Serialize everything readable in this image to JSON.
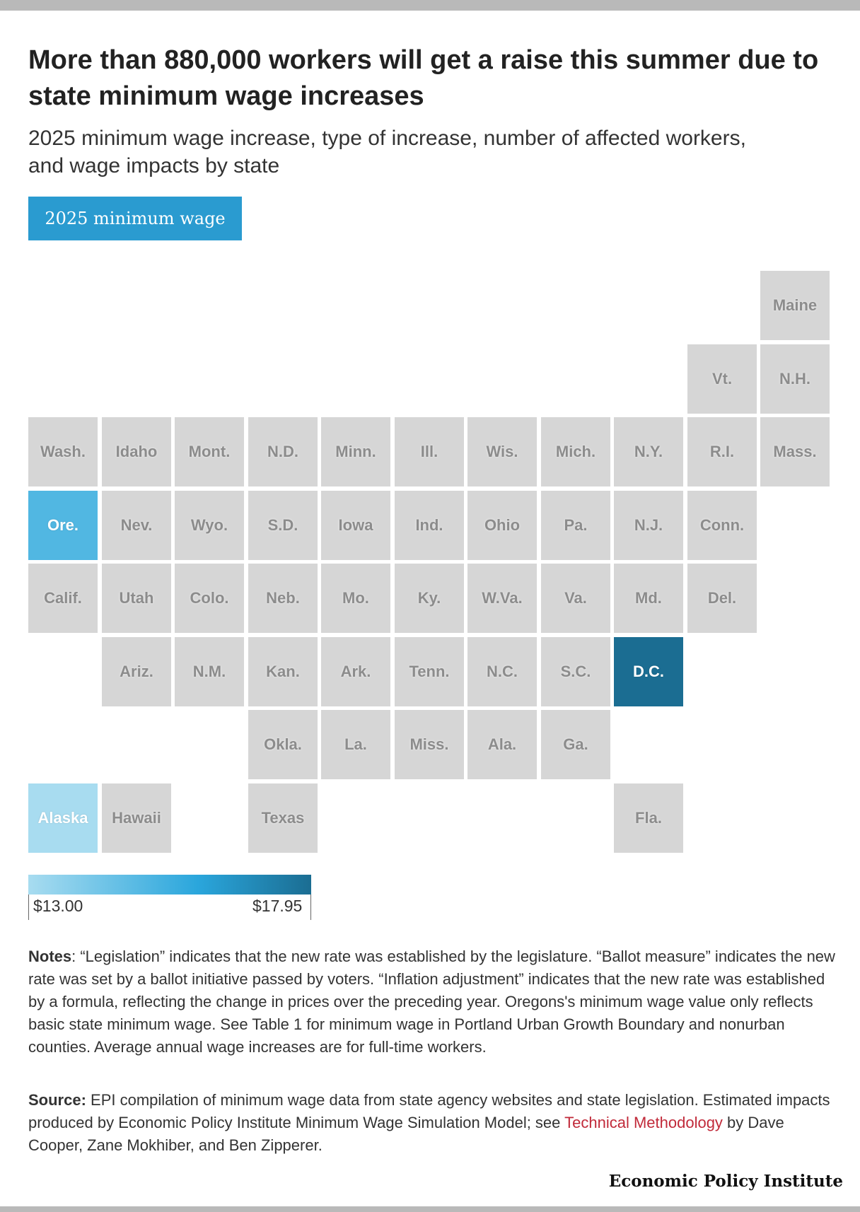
{
  "title": "More than 880,000 workers will get a raise this summer due to state minimum wage increases",
  "subtitle": "2025 minimum wage increase, type of increase, number of affected workers, and wage impacts by state",
  "tab": {
    "label": "2025 minimum wage"
  },
  "map": {
    "colors": {
      "empty": "#d6d6d6",
      "low": "#a8dcf0",
      "mid": "#2aa6dc",
      "high": "#1b6d92"
    },
    "legend": {
      "min_label": "$13.00",
      "max_label": "$17.95",
      "min_value": 13.0,
      "max_value": 17.95
    },
    "states": [
      {
        "label": "Maine",
        "row": 0,
        "col": 10
      },
      {
        "label": "Vt.",
        "row": 1,
        "col": 9
      },
      {
        "label": "N.H.",
        "row": 1,
        "col": 10
      },
      {
        "label": "Wash.",
        "row": 2,
        "col": 0
      },
      {
        "label": "Idaho",
        "row": 2,
        "col": 1
      },
      {
        "label": "Mont.",
        "row": 2,
        "col": 2
      },
      {
        "label": "N.D.",
        "row": 2,
        "col": 3
      },
      {
        "label": "Minn.",
        "row": 2,
        "col": 4
      },
      {
        "label": "Ill.",
        "row": 2,
        "col": 5
      },
      {
        "label": "Wis.",
        "row": 2,
        "col": 6
      },
      {
        "label": "Mich.",
        "row": 2,
        "col": 7
      },
      {
        "label": "N.Y.",
        "row": 2,
        "col": 8
      },
      {
        "label": "R.I.",
        "row": 2,
        "col": 9
      },
      {
        "label": "Mass.",
        "row": 2,
        "col": 10
      },
      {
        "label": "Ore.",
        "row": 3,
        "col": 0,
        "wage": 15.05
      },
      {
        "label": "Nev.",
        "row": 3,
        "col": 1
      },
      {
        "label": "Wyo.",
        "row": 3,
        "col": 2
      },
      {
        "label": "S.D.",
        "row": 3,
        "col": 3
      },
      {
        "label": "Iowa",
        "row": 3,
        "col": 4
      },
      {
        "label": "Ind.",
        "row": 3,
        "col": 5
      },
      {
        "label": "Ohio",
        "row": 3,
        "col": 6
      },
      {
        "label": "Pa.",
        "row": 3,
        "col": 7
      },
      {
        "label": "N.J.",
        "row": 3,
        "col": 8
      },
      {
        "label": "Conn.",
        "row": 3,
        "col": 9
      },
      {
        "label": "Calif.",
        "row": 4,
        "col": 0
      },
      {
        "label": "Utah",
        "row": 4,
        "col": 1
      },
      {
        "label": "Colo.",
        "row": 4,
        "col": 2
      },
      {
        "label": "Neb.",
        "row": 4,
        "col": 3
      },
      {
        "label": "Mo.",
        "row": 4,
        "col": 4
      },
      {
        "label": "Ky.",
        "row": 4,
        "col": 5
      },
      {
        "label": "W.Va.",
        "row": 4,
        "col": 6
      },
      {
        "label": "Va.",
        "row": 4,
        "col": 7
      },
      {
        "label": "Md.",
        "row": 4,
        "col": 8
      },
      {
        "label": "Del.",
        "row": 4,
        "col": 9
      },
      {
        "label": "Ariz.",
        "row": 5,
        "col": 1
      },
      {
        "label": "N.M.",
        "row": 5,
        "col": 2
      },
      {
        "label": "Kan.",
        "row": 5,
        "col": 3
      },
      {
        "label": "Ark.",
        "row": 5,
        "col": 4
      },
      {
        "label": "Tenn.",
        "row": 5,
        "col": 5
      },
      {
        "label": "N.C.",
        "row": 5,
        "col": 6
      },
      {
        "label": "S.C.",
        "row": 5,
        "col": 7
      },
      {
        "label": "D.C.",
        "row": 5,
        "col": 8,
        "wage": 17.95
      },
      {
        "label": "Okla.",
        "row": 6,
        "col": 3
      },
      {
        "label": "La.",
        "row": 6,
        "col": 4
      },
      {
        "label": "Miss.",
        "row": 6,
        "col": 5
      },
      {
        "label": "Ala.",
        "row": 6,
        "col": 6
      },
      {
        "label": "Ga.",
        "row": 6,
        "col": 7
      },
      {
        "label": "Alaska",
        "row": 7,
        "col": 0,
        "wage": 13.0
      },
      {
        "label": "Hawaii",
        "row": 7,
        "col": 1
      },
      {
        "label": "Texas",
        "row": 7,
        "col": 3
      },
      {
        "label": "Fla.",
        "row": 7,
        "col": 8
      }
    ]
  },
  "notes": {
    "label": "Notes",
    "text": ": “Legislation” indicates that the new rate was established by the legislature. “Ballot measure” indicates the new rate was set by a ballot initiative passed by voters. “Inflation adjustment” indicates that the new rate was established by a formula, reflecting the change in prices over the preceding year. Oregons's minimum wage value only reflects basic state minimum wage. See Table 1 for minimum wage in Portland Urban Growth Boundary and nonurban counties. Average annual wage increases are for full-time workers."
  },
  "source": {
    "label": "Source:",
    "text": " EPI compilation of minimum wage data from state agency websites and state legislation. Estimated impacts produced by Economic Policy Institute Minimum Wage Simulation Model; see ",
    "link_text": "Technical Methodology",
    "tail": " by Dave Cooper, Zane Mokhiber, and Ben Zipperer."
  },
  "brand": "Economic Policy Institute"
}
